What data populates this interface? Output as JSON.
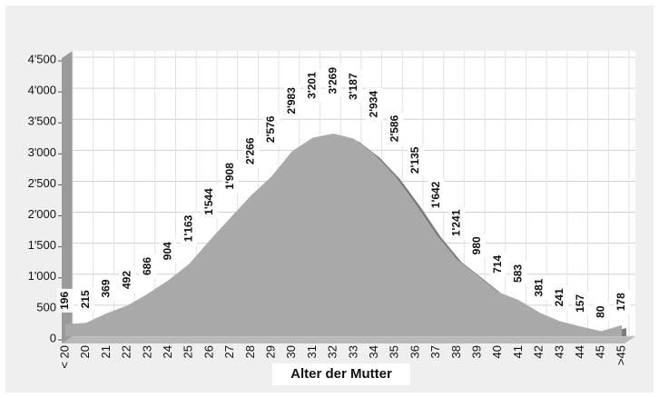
{
  "chart_data": {
    "type": "area",
    "x_label": "Alter der Mutter",
    "categories": [
      "< 20",
      "20",
      "21",
      "22",
      "23",
      "24",
      "25",
      "26",
      "27",
      "28",
      "29",
      "30",
      "31",
      "32",
      "33",
      "34",
      "35",
      "36",
      "37",
      "38",
      "39",
      "40",
      "41",
      "42",
      "43",
      "44",
      "45",
      ">45"
    ],
    "values": [
      196,
      215,
      369,
      492,
      686,
      904,
      1163,
      1544,
      1908,
      2266,
      2576,
      2983,
      3201,
      3269,
      3187,
      2934,
      2586,
      2135,
      1642,
      1241,
      980,
      714,
      583,
      381,
      241,
      157,
      80,
      178
    ],
    "value_labels": [
      "196",
      "215",
      "369",
      "492",
      "686",
      "904",
      "1'163",
      "1'544",
      "1'908",
      "2'266",
      "2'576",
      "2'983",
      "3'201",
      "3'269",
      "3'187",
      "2'934",
      "2'586",
      "2'135",
      "1'642",
      "1'241",
      "980",
      "714",
      "583",
      "381",
      "241",
      "157",
      "80",
      "178"
    ],
    "color": "#a9a9a9",
    "ylim": [
      0,
      4500
    ],
    "yticks": [
      0,
      500,
      {
        "value": 1000,
        "label": "1'000"
      },
      {
        "value": 1500,
        "label": "1'500"
      },
      {
        "value": 2000,
        "label": "2'000"
      },
      {
        "value": 2500,
        "label": "2'500"
      },
      {
        "value": 3000,
        "label": "3'000"
      },
      {
        "value": 3500,
        "label": "3'500"
      },
      {
        "value": 4000,
        "label": "4'000"
      },
      {
        "value": 4500,
        "label": "4'500"
      }
    ],
    "grid": true
  }
}
